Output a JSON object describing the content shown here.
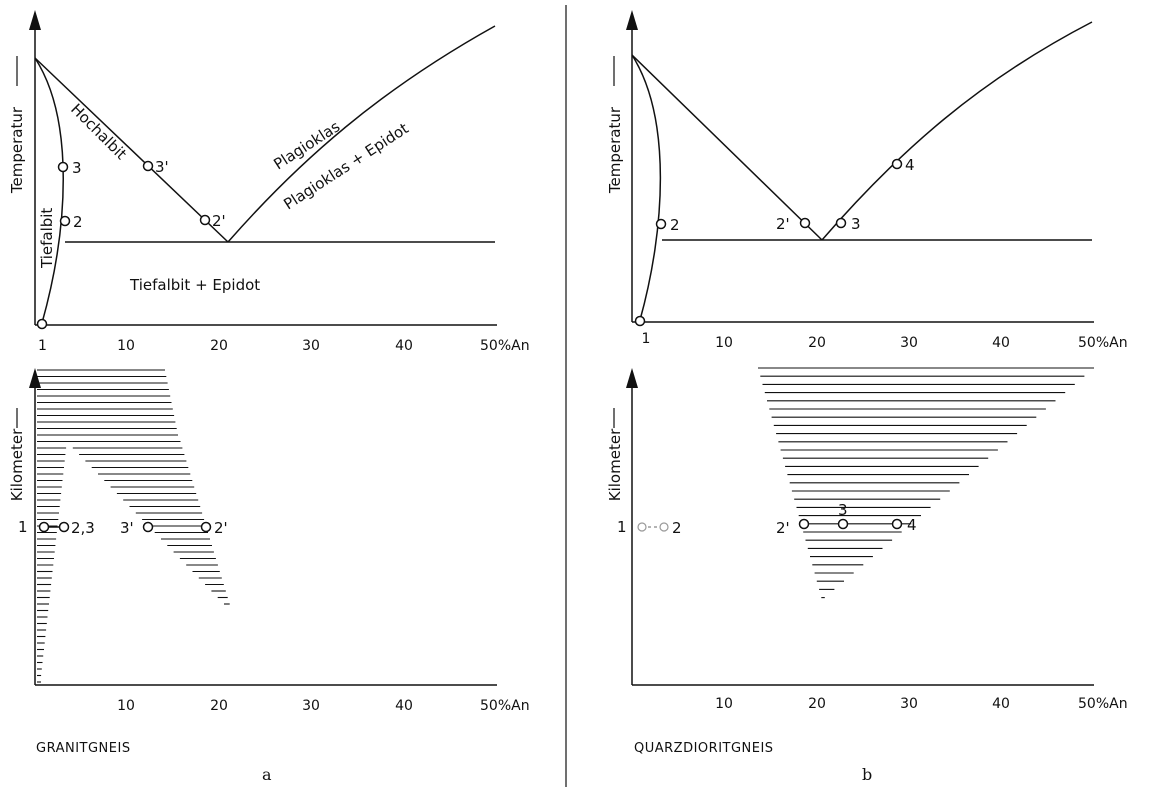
{
  "panels": {
    "a": {
      "letter": "a",
      "rock_name": "GRANITGNEIS",
      "top": {
        "y_axis_label": "Temperatur",
        "x_ticks": [
          "10",
          "20",
          "30",
          "40",
          "50%An"
        ],
        "regions": {
          "upper_left": "Hochalbit",
          "left": "Tiefalbit",
          "upper_right": "Plagioklas",
          "right": "Plagioklas + Epidot",
          "bottom": "Tiefalbit + Epidot"
        },
        "points": [
          {
            "label": "1",
            "x": 1,
            "t": 0.0
          },
          {
            "label": "2",
            "x": 3,
            "t": 0.34
          },
          {
            "label": "3",
            "x": 3,
            "t": 0.52
          },
          {
            "label": "2'",
            "x": 18.5,
            "t": 0.34
          },
          {
            "label": "3'",
            "x": 12.5,
            "t": 0.52
          }
        ]
      },
      "bottom": {
        "y_axis_label": "Kilometer",
        "x_ticks": [
          "10",
          "20",
          "30",
          "40",
          "50%An"
        ],
        "points": [
          {
            "label": "1",
            "x": 1
          },
          {
            "label": "2,3",
            "x": 3
          },
          {
            "label": "3'",
            "x": 12.5
          },
          {
            "label": "2'",
            "x": 18.5
          }
        ]
      }
    },
    "b": {
      "letter": "b",
      "rock_name": "QUARZDIORITGNEIS",
      "top": {
        "y_axis_label": "Temperatur",
        "x_ticks": [
          "1",
          "10",
          "20",
          "30",
          "40",
          "50%An"
        ],
        "points": [
          {
            "label": "1",
            "x": 1,
            "t": 0.0
          },
          {
            "label": "2",
            "x": 3,
            "t": 0.34
          },
          {
            "label": "2'",
            "x": 19,
            "t": 0.34
          },
          {
            "label": "3",
            "x": 23,
            "t": 0.34
          },
          {
            "label": "4",
            "x": 29,
            "t": 0.52
          }
        ]
      },
      "bottom": {
        "y_axis_label": "Kilometer",
        "x_ticks": [
          "10",
          "20",
          "30",
          "40",
          "50%An"
        ],
        "points": [
          {
            "label": "1",
            "x": 1
          },
          {
            "label": "2",
            "x": 3
          },
          {
            "label": "2'",
            "x": 19
          },
          {
            "label": "3",
            "x": 23
          },
          {
            "label": "4",
            "x": 29
          }
        ]
      }
    }
  }
}
